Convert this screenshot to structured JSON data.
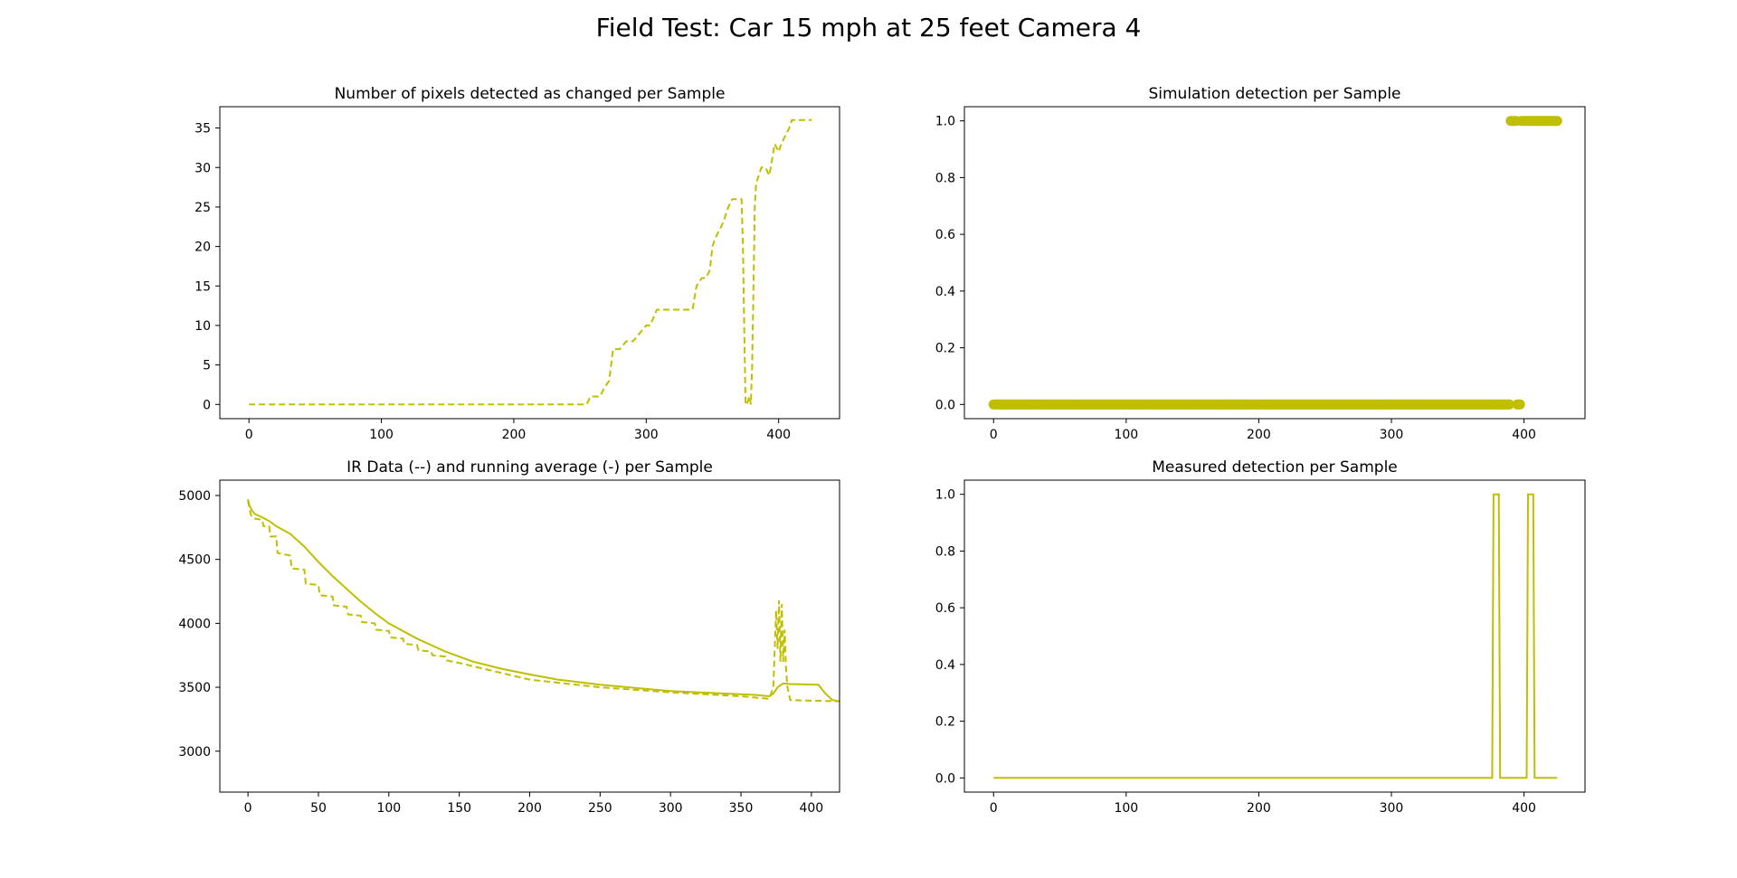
{
  "figure": {
    "suptitle": "Field Test: Car 15 mph at 25 feet Camera 4",
    "color": "#bfbf00"
  },
  "chart_data": [
    {
      "id": "pixels",
      "type": "line",
      "title": "Number of pixels detected as changed per Sample",
      "xlim": [
        -22,
        446
      ],
      "ylim": [
        -1.8,
        37.7
      ],
      "xticks": [
        0,
        100,
        200,
        300,
        400
      ],
      "yticks": [
        0,
        5,
        10,
        15,
        20,
        25,
        30,
        35
      ],
      "series": [
        {
          "style": "dashed",
          "x": [
            0,
            255,
            258,
            265,
            268,
            272,
            275,
            280,
            285,
            290,
            295,
            300,
            303,
            308,
            312,
            320,
            335,
            338,
            342,
            345,
            348,
            350,
            352,
            355,
            358,
            360,
            362,
            365,
            368,
            372,
            373,
            374,
            375,
            376,
            378,
            379,
            380,
            381,
            382,
            383,
            385,
            387,
            390,
            393,
            395,
            397,
            400,
            402,
            405,
            408,
            410,
            415,
            420,
            425
          ],
          "y": [
            0,
            0,
            1,
            1,
            2,
            3,
            7,
            7,
            8,
            8,
            9,
            10,
            10,
            12,
            12,
            12,
            12,
            15,
            16,
            16,
            17,
            20,
            21,
            22,
            23,
            24,
            25,
            26,
            26,
            26,
            20,
            10,
            0,
            0,
            1,
            0,
            5,
            15,
            25,
            28,
            29,
            30,
            30,
            29,
            31,
            33,
            32,
            33,
            34,
            35,
            36,
            36,
            36,
            36
          ]
        }
      ]
    },
    {
      "id": "simulation",
      "type": "scatter",
      "title": "Simulation detection per Sample",
      "xlim": [
        -22,
        446
      ],
      "ylim": [
        -0.05,
        1.05
      ],
      "xticks": [
        0,
        100,
        200,
        300,
        400
      ],
      "yticks": [
        0.0,
        0.2,
        0.4,
        0.6,
        0.8,
        1.0
      ],
      "segments": [
        {
          "from": 0,
          "to": 389,
          "value": 0
        },
        {
          "from": 390,
          "to": 394,
          "value": 1
        },
        {
          "from": 395,
          "to": 397,
          "value": 0
        },
        {
          "from": 398,
          "to": 425,
          "value": 1
        }
      ]
    },
    {
      "id": "ir",
      "type": "line",
      "title": "IR Data (--) and running average (-) per Sample",
      "xlim": [
        -20,
        420
      ],
      "ylim": [
        2680,
        5120
      ],
      "xticks": [
        0,
        50,
        100,
        150,
        200,
        250,
        300,
        350,
        400
      ],
      "yticks": [
        3000,
        3500,
        4000,
        4500,
        5000
      ],
      "series": [
        {
          "style": "dashed",
          "x": [
            0,
            1,
            2,
            3,
            4,
            10,
            11,
            15,
            16,
            20,
            21,
            30,
            31,
            40,
            41,
            50,
            51,
            60,
            61,
            70,
            71,
            80,
            81,
            90,
            91,
            100,
            101,
            110,
            111,
            120,
            121,
            130,
            131,
            140,
            141,
            150,
            200,
            250,
            300,
            350,
            370,
            373,
            375,
            376,
            377,
            378,
            379,
            380,
            381,
            382,
            383,
            385,
            400,
            420
          ],
          "y": [
            4960,
            4900,
            4850,
            4830,
            4820,
            4810,
            4760,
            4760,
            4680,
            4680,
            4550,
            4530,
            4430,
            4420,
            4310,
            4300,
            4220,
            4210,
            4140,
            4130,
            4070,
            4060,
            4010,
            4000,
            3950,
            3940,
            3890,
            3880,
            3840,
            3830,
            3790,
            3780,
            3750,
            3740,
            3710,
            3690,
            3560,
            3500,
            3460,
            3430,
            3410,
            3500,
            4100,
            3800,
            4180,
            3700,
            4150,
            3700,
            3950,
            3650,
            3500,
            3400,
            3395,
            3390
          ]
        },
        {
          "style": "solid",
          "x": [
            0,
            1,
            3,
            5,
            10,
            15,
            20,
            30,
            40,
            50,
            60,
            70,
            80,
            90,
            100,
            120,
            140,
            160,
            180,
            200,
            220,
            250,
            280,
            300,
            330,
            360,
            370,
            373,
            376,
            380,
            385,
            405,
            410,
            415,
            420
          ],
          "y": [
            4970,
            4920,
            4880,
            4855,
            4830,
            4800,
            4760,
            4700,
            4600,
            4480,
            4370,
            4270,
            4170,
            4080,
            4000,
            3880,
            3780,
            3700,
            3645,
            3600,
            3560,
            3520,
            3490,
            3470,
            3455,
            3440,
            3430,
            3450,
            3500,
            3530,
            3525,
            3520,
            3450,
            3400,
            3390
          ]
        }
      ]
    },
    {
      "id": "measured",
      "type": "line",
      "title": "Measured detection per Sample",
      "xlim": [
        -22,
        446
      ],
      "ylim": [
        -0.05,
        1.05
      ],
      "xticks": [
        0,
        100,
        200,
        300,
        400
      ],
      "yticks": [
        0.0,
        0.2,
        0.4,
        0.6,
        0.8,
        1.0
      ],
      "series": [
        {
          "style": "solid",
          "x": [
            0,
            376,
            377,
            381,
            382,
            402,
            403,
            407,
            408,
            425
          ],
          "y": [
            0,
            0,
            1,
            1,
            0,
            0,
            1,
            1,
            0,
            0
          ]
        }
      ]
    }
  ]
}
